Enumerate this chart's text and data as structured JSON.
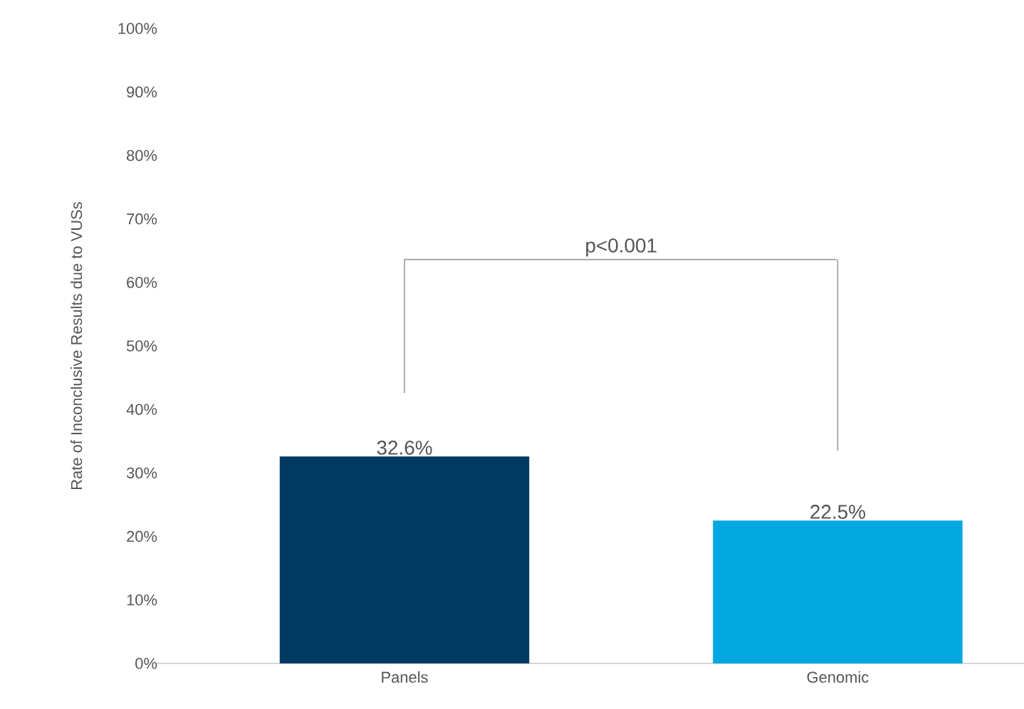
{
  "chart_data": {
    "type": "bar",
    "ylabel": "Rate of Inconclusive Results due to VUSs",
    "categories": [
      "Panels",
      "Genomic"
    ],
    "values": [
      32.6,
      22.5
    ],
    "colors": [
      "#003a63",
      "#00a8e1"
    ],
    "value_labels": [
      "32.6%",
      "22.5%"
    ],
    "ylim": [
      0,
      100
    ],
    "yticks": [
      {
        "value": 0,
        "label": "0%"
      },
      {
        "value": 10,
        "label": "10%"
      },
      {
        "value": 20,
        "label": "20%"
      },
      {
        "value": 30,
        "label": "30%"
      },
      {
        "value": 40,
        "label": "40%"
      },
      {
        "value": 50,
        "label": "50%"
      },
      {
        "value": 60,
        "label": "60%"
      },
      {
        "value": 70,
        "label": "70%"
      },
      {
        "value": 80,
        "label": "80%"
      },
      {
        "value": 90,
        "label": "90%"
      },
      {
        "value": 100,
        "label": "100%"
      }
    ],
    "annotations": [
      "p<0.001"
    ],
    "grid": false
  }
}
